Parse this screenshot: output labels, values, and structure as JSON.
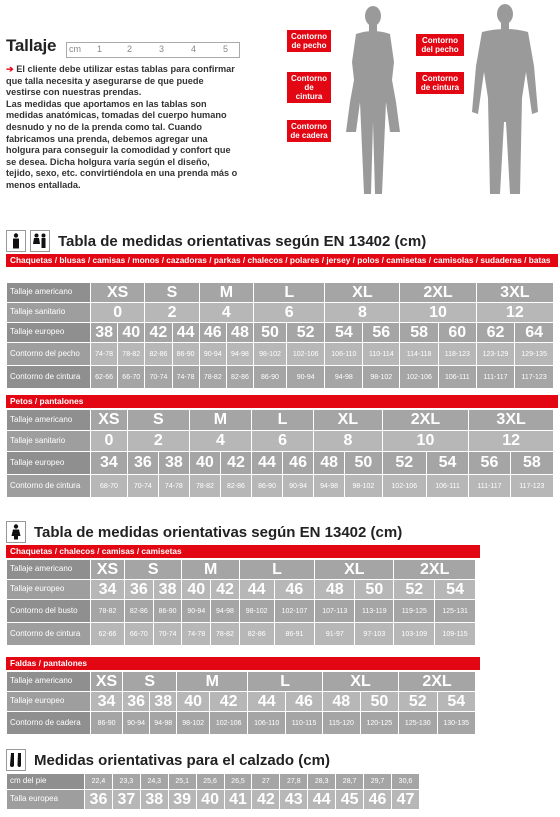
{
  "intro": {
    "title": "Tallaje",
    "ruler": [
      "cm",
      "1",
      "2",
      "3",
      "4",
      "5"
    ],
    "text_lead": "El cliente debe utilizar estas tablas para confirmar que talla necesita y asegurarse de que puede vestirse con nuestras prendas.",
    "text_body": "Las medidas que aportamos en las tablas son medidas anatómicas, tomadas del cuerpo humano desnudo y no de la prenda como tal. Cuando fabricamos una prenda, debemos agregar una holgura para conseguir la comodidad y confort que se desea. Dicha holgura varía según el diseño, tejido, sexo, etc. convirtiéndola en una prenda más o menos entallada."
  },
  "figures": {
    "woman": {
      "chest": "Contorno de pecho",
      "waist": "Contorno de cintura",
      "hip": "Contorno de cadera"
    },
    "man": {
      "chest": "Contorno del pecho",
      "waist": "Contorno de cintura"
    }
  },
  "section1": {
    "title": "Tabla de medidas orientativas según EN 13402 (cm)",
    "table_a": {
      "header": "Chaquetas / blusas / camisas / monos / cazadoras / parkas / chalecos / polares / jersey / polos / camisetas / camisolas / sudaderas / batas",
      "labels": [
        "Tallaje americano",
        "Tallaje sanitario",
        "Tallaje europeo",
        "Contorno del pecho",
        "Contorno de cintura"
      ],
      "american": [
        "XS",
        "S",
        "M",
        "L",
        "XL",
        "2XL",
        "3XL"
      ],
      "sanitario": [
        "0",
        "2",
        "4",
        "6",
        "8",
        "10",
        "12"
      ],
      "europeo": [
        "38",
        "40",
        "42",
        "44",
        "46",
        "48",
        "50",
        "52",
        "54",
        "56",
        "58",
        "60",
        "62",
        "64"
      ],
      "pecho": [
        "74-78",
        "78-82",
        "82-86",
        "86-90",
        "90-94",
        "94-98",
        "98-102",
        "102-106",
        "106-110",
        "110-114",
        "114-118",
        "118-123",
        "123-129",
        "129-135"
      ],
      "cintura": [
        "62-66",
        "66-70",
        "70-74",
        "74-78",
        "78-82",
        "82-86",
        "86-90",
        "90-94",
        "94-98",
        "98-102",
        "102-106",
        "106-111",
        "111-117",
        "117-123"
      ]
    },
    "table_b": {
      "header": "Petos / pantalones",
      "labels": [
        "Tallaje americano",
        "Tallaje sanitario",
        "Tallaje europeo",
        "Contorno de cintura"
      ],
      "american": [
        "XS",
        "S",
        "M",
        "L",
        "XL",
        "2XL",
        "3XL"
      ],
      "sanitario": [
        "0",
        "2",
        "4",
        "6",
        "8",
        "10",
        "12"
      ],
      "europeo": [
        "34",
        "36",
        "38",
        "40",
        "42",
        "44",
        "46",
        "48",
        "50",
        "52",
        "54",
        "56",
        "58"
      ],
      "cintura": [
        "68-70",
        "70-74",
        "74-78",
        "78-82",
        "82-86",
        "86-90",
        "90-94",
        "94-98",
        "98-102",
        "102-106",
        "106-111",
        "111-117",
        "117-123"
      ]
    }
  },
  "section2": {
    "title": "Tabla de medidas orientativas según EN 13402 (cm)",
    "table_a": {
      "header": "Chaquetas / chalecos / camisas / camisetas",
      "labels": [
        "Tallaje americano",
        "Tallaje europeo",
        "Contorno del busto",
        "Contorno de cintura"
      ],
      "american": [
        "XS",
        "S",
        "M",
        "L",
        "XL",
        "2XL"
      ],
      "europeo": [
        "34",
        "36",
        "38",
        "40",
        "42",
        "44",
        "46",
        "48",
        "50",
        "52",
        "54"
      ],
      "busto": [
        "78-82",
        "82-86",
        "86-90",
        "90-94",
        "94-98",
        "98-102",
        "102-107",
        "107-113",
        "113-119",
        "119-125",
        "125-131"
      ],
      "cintura": [
        "62-66",
        "66-70",
        "70-74",
        "74-78",
        "78-82",
        "82-86",
        "86-91",
        "91-97",
        "97-103",
        "103-109",
        "109-115"
      ]
    },
    "table_b": {
      "header": "Faldas / pantalones",
      "labels": [
        "Tallaje americano",
        "Tallaje europeo",
        "Contorno de cadera"
      ],
      "american": [
        "XS",
        "S",
        "M",
        "L",
        "XL",
        "2XL"
      ],
      "europeo": [
        "34",
        "36",
        "38",
        "40",
        "42",
        "44",
        "46",
        "48",
        "50",
        "52",
        "54"
      ],
      "cadera": [
        "86-90",
        "90-94",
        "94-98",
        "98-102",
        "102-106",
        "106-110",
        "110-115",
        "115-120",
        "120-125",
        "125-130",
        "130-135"
      ]
    }
  },
  "section3": {
    "title": "Medidas orientativas para el calzado (cm)",
    "labels": [
      "cm del pie",
      "Talla europea"
    ],
    "cm": [
      "22,4",
      "23,3",
      "24,3",
      "25,1",
      "25,6",
      "26,5",
      "27",
      "27,8",
      "28,3",
      "28,7",
      "29,7",
      "30,6"
    ],
    "talla": [
      "36",
      "37",
      "38",
      "39",
      "40",
      "41",
      "42",
      "43",
      "44",
      "45",
      "46",
      "47"
    ]
  }
}
